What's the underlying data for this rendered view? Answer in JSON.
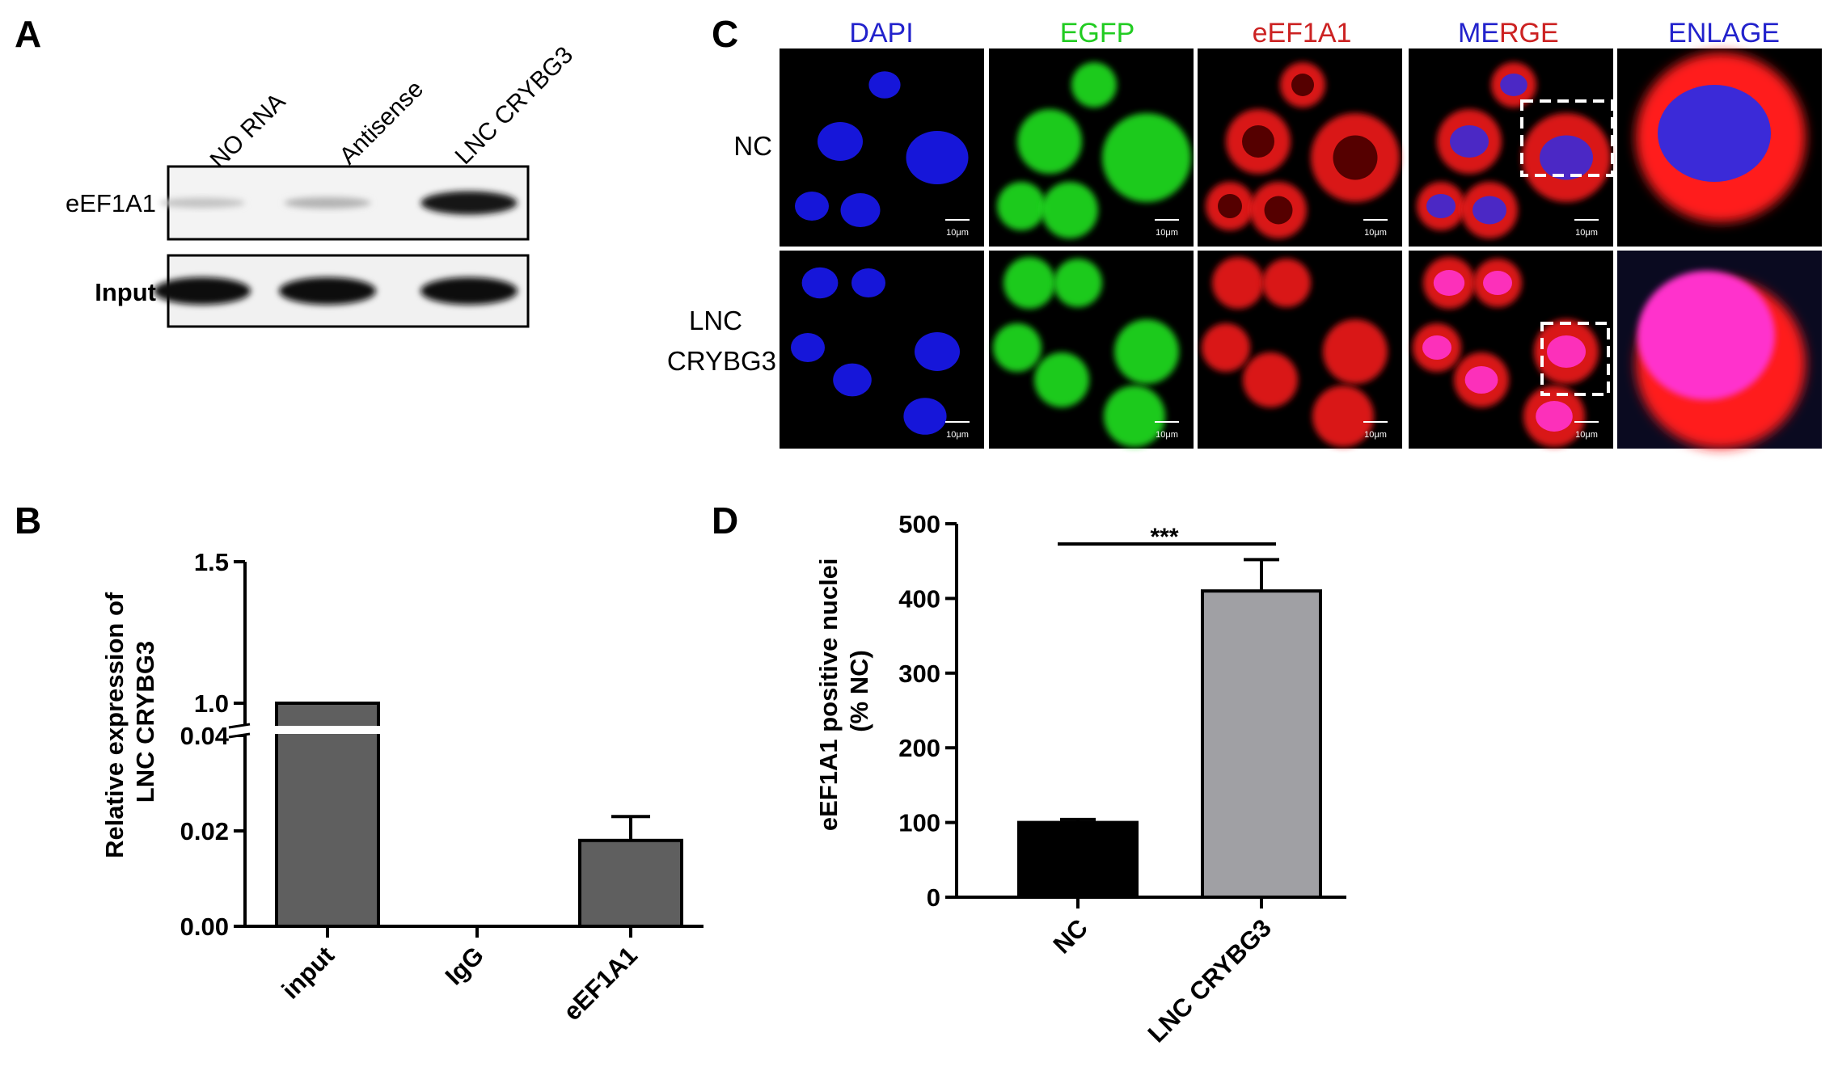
{
  "panels": {
    "A": {
      "letter": "A",
      "lanes": [
        "NO RNA",
        "Antisense",
        "LNC CRYBG3"
      ],
      "rows": [
        "eEF1A1",
        "Input"
      ],
      "band_intensity": {
        "eEF1A1": [
          0.12,
          0.2,
          0.95
        ],
        "Input": [
          1,
          1,
          1
        ]
      }
    },
    "B": {
      "letter": "B"
    },
    "C": {
      "letter": "C",
      "columns": [
        "DAPI",
        "EGFP",
        "eEF1A1",
        "ME",
        "RGE",
        "ENLAGE"
      ],
      "column_colors": [
        "#2222cc",
        "#22cc22",
        "#cc2222",
        "#2222cc",
        "#cc2222",
        "#2222cc"
      ],
      "rows": [
        "NC",
        "LNC",
        "CRYBG3"
      ],
      "scale_bar": "10μm"
    },
    "D": {
      "letter": "D"
    }
  },
  "chart_data": [
    {
      "type": "bar",
      "panel": "B",
      "categories": [
        "input",
        "IgG",
        "eEF1A1"
      ],
      "values": [
        1.0,
        0.0,
        0.018
      ],
      "error_upper": [
        0,
        0,
        0.023
      ],
      "ylabel": "Relative expression of LNC CRYBG3",
      "ylabel_lines": [
        "Relative expression of",
        "LNC CRYBG3"
      ],
      "broken_axis": true,
      "axis_segments": [
        {
          "range": [
            0.0,
            0.04
          ],
          "ticks": [
            "0.00",
            "0.02",
            "0.04"
          ]
        },
        {
          "range": [
            0.9,
            1.5
          ],
          "ticks": [
            "1.0",
            "1.5"
          ]
        }
      ],
      "bar_color": "#5f5f5f",
      "grid": false
    },
    {
      "type": "bar",
      "panel": "D",
      "categories": [
        "NC",
        "LNC CRYBG3"
      ],
      "values": [
        100,
        410
      ],
      "error_upper": [
        104,
        452
      ],
      "ylabel": "eEF1A1 positive nuclei (% NC)",
      "ylabel_lines": [
        "eEF1A1 positive nuclei",
        "(% NC)"
      ],
      "ylim": [
        0,
        500
      ],
      "yticks": [
        "0",
        "100",
        "200",
        "300",
        "400",
        "500"
      ],
      "significance": "***",
      "bar_colors": [
        "#000000",
        "#a0a0a4"
      ],
      "grid": false
    }
  ]
}
